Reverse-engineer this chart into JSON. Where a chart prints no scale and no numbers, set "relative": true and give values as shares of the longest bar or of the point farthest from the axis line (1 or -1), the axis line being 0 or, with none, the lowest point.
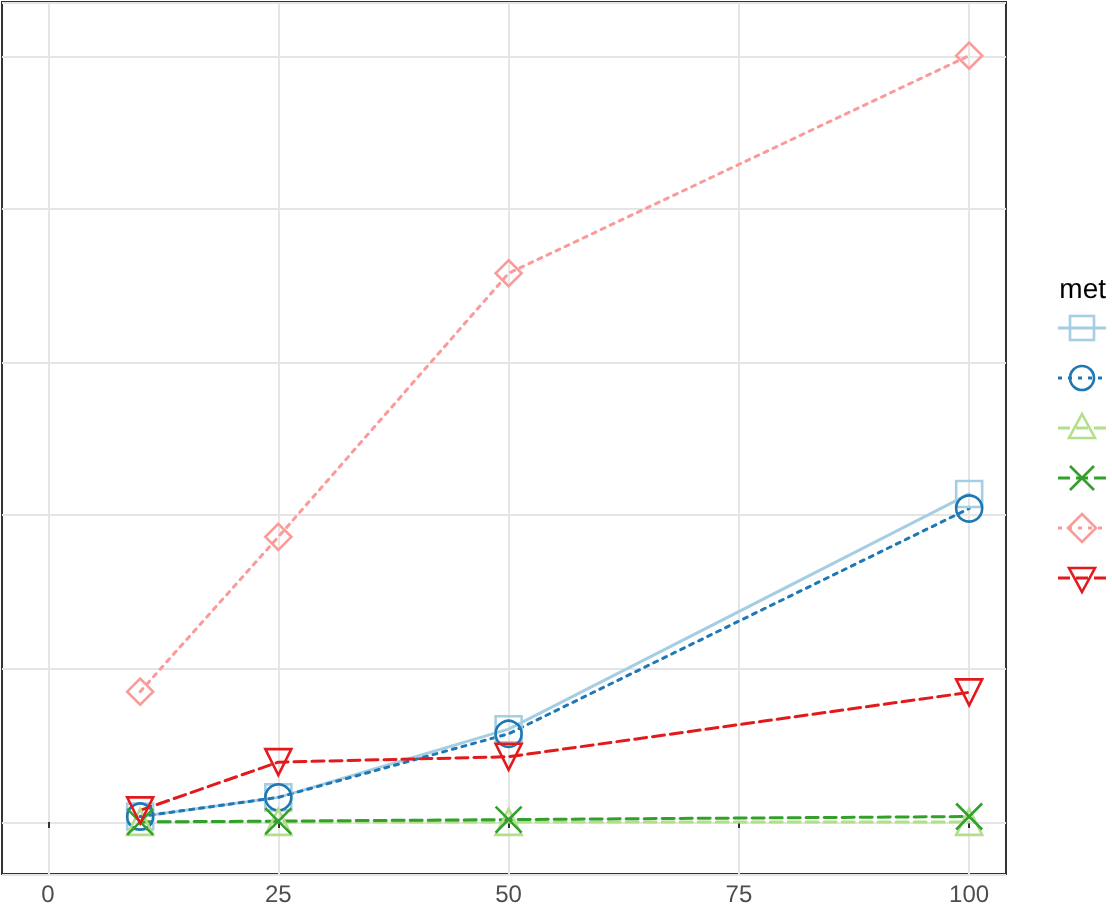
{
  "chart_data": {
    "type": "line",
    "relative": true,
    "legend_title": "met",
    "grid": true,
    "x": [
      10,
      25,
      50,
      100
    ],
    "xlim": [
      -5,
      104
    ],
    "xticks": [
      0,
      25,
      50,
      75,
      100
    ],
    "series": [
      {
        "color": "#a6cee3",
        "marker": "square",
        "line_style": "solid",
        "values": [
          0.007,
          0.032,
          0.121,
          0.428
        ]
      },
      {
        "color": "#1f78b4",
        "marker": "circle",
        "line_style": "dotted",
        "values": [
          0.007,
          0.032,
          0.115,
          0.409
        ]
      },
      {
        "color": "#b2df8a",
        "marker": "triangle",
        "line_style": "dashed",
        "values": [
          0,
          0,
          0,
          0
        ]
      },
      {
        "color": "#33a02c",
        "marker": "cross",
        "line_style": "dashed",
        "values": [
          0,
          0.001,
          0.003,
          0.007
        ]
      },
      {
        "color": "#fb9a99",
        "marker": "diamond",
        "line_style": "dotted",
        "values": [
          0.17,
          0.372,
          0.716,
          1
        ]
      },
      {
        "color": "#e31a1c",
        "marker": "triangle-down",
        "line_style": "dashed",
        "values": [
          0.015,
          0.078,
          0.085,
          0.169
        ]
      }
    ]
  }
}
